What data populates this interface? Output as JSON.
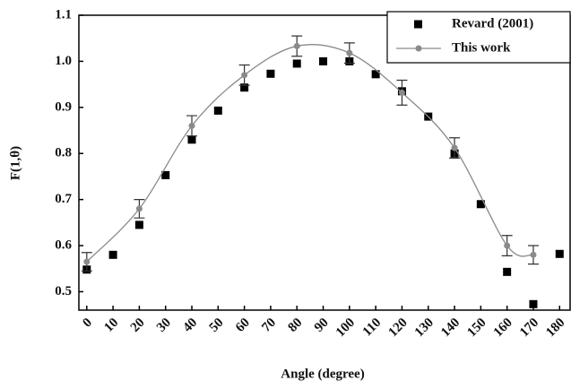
{
  "chart_data": {
    "type": "scatter",
    "x_label": "Angle (degree)",
    "y_label": "F(1,θ)",
    "xlim": [
      -3,
      184
    ],
    "ylim": [
      0.46,
      1.1
    ],
    "xticks": [
      0,
      10,
      20,
      30,
      40,
      50,
      60,
      70,
      80,
      90,
      100,
      110,
      120,
      130,
      140,
      150,
      160,
      170,
      180
    ],
    "yticks": [
      0.5,
      0.6,
      0.7,
      0.8,
      0.9,
      {
        "value": 1.0,
        "label": "1.0"
      },
      1.1
    ],
    "legend": "upper right",
    "series": [
      {
        "name": "Revard (2001)",
        "color": "#000000",
        "marker": "square",
        "x": [
          0,
          10,
          20,
          30,
          40,
          50,
          60,
          70,
          80,
          90,
          100,
          110,
          120,
          130,
          140,
          150,
          160,
          170,
          180
        ],
        "values": [
          0.548,
          0.58,
          0.645,
          0.753,
          0.83,
          0.893,
          0.943,
          0.973,
          0.995,
          1.0,
          1.0,
          0.972,
          0.935,
          0.88,
          0.8,
          0.69,
          0.543,
          0.473,
          0.582
        ]
      },
      {
        "name": "This work",
        "color": "#8a8a8a",
        "marker": "circle-line",
        "x": [
          0,
          20,
          40,
          60,
          80,
          100,
          120,
          140,
          160,
          170
        ],
        "values": [
          0.565,
          0.68,
          0.86,
          0.97,
          1.033,
          1.018,
          0.932,
          0.812,
          0.6,
          0.58
        ],
        "errors": [
          0.02,
          0.02,
          0.022,
          0.022,
          0.022,
          0.022,
          0.027,
          0.022,
          0.022,
          0.02
        ]
      }
    ]
  }
}
